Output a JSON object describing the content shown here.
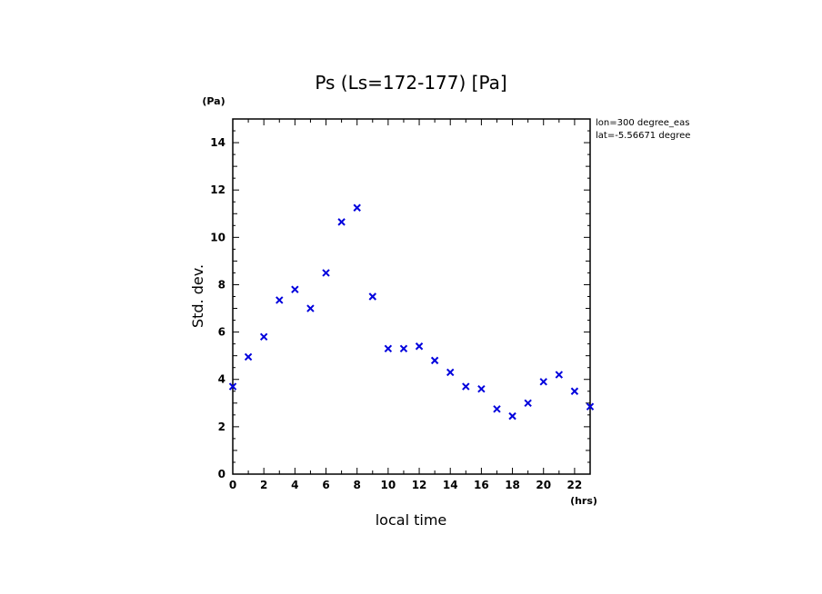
{
  "chart_data": {
    "type": "scatter",
    "title": "Ps (Ls=172-177) [Pa]",
    "xlabel": "local time",
    "ylabel": "Std. dev.",
    "x_unit": "(hrs)",
    "y_unit": "(Pa)",
    "xlim": [
      0,
      23
    ],
    "ylim": [
      0,
      15
    ],
    "x_ticks": [
      0,
      2,
      4,
      6,
      8,
      10,
      12,
      14,
      16,
      18,
      20,
      22
    ],
    "y_ticks": [
      0,
      2,
      4,
      6,
      8,
      10,
      12,
      14
    ],
    "annotations": [
      "lon=300 degree_eas",
      "lat=-5.56671 degree"
    ],
    "marker": "x",
    "marker_color": "#0000dd",
    "x": [
      0,
      1,
      2,
      3,
      4,
      5,
      6,
      7,
      8,
      9,
      10,
      11,
      12,
      13,
      14,
      15,
      16,
      17,
      18,
      19,
      20,
      21,
      22,
      23
    ],
    "y": [
      3.7,
      4.95,
      5.8,
      7.35,
      7.8,
      7.0,
      8.5,
      10.65,
      11.25,
      7.5,
      5.3,
      5.3,
      5.4,
      4.8,
      4.3,
      3.7,
      3.6,
      2.75,
      2.45,
      3.0,
      3.9,
      4.2,
      3.5,
      2.85
    ]
  }
}
